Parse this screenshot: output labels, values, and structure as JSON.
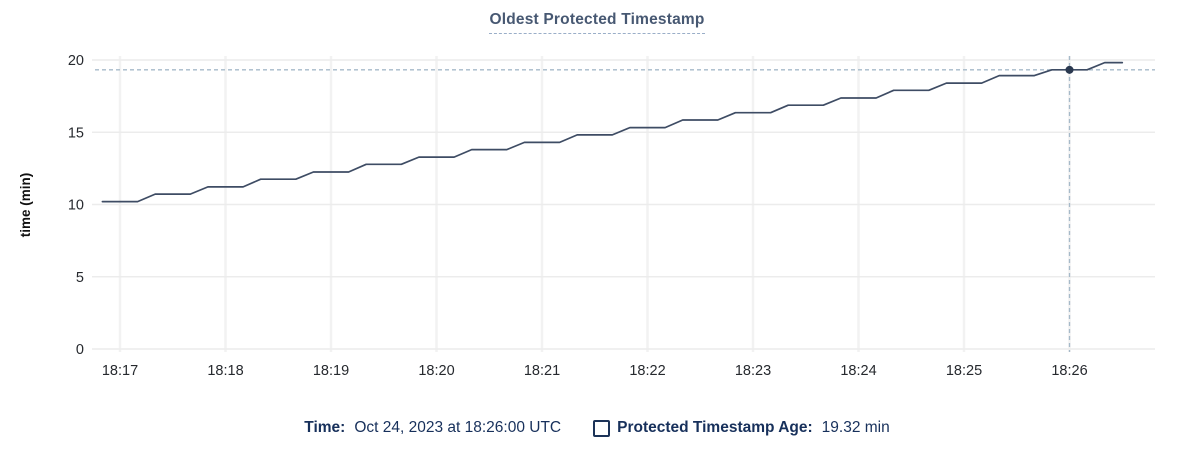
{
  "title": {
    "text": "Oldest Protected Timestamp"
  },
  "legend": {
    "time_label": "Time:",
    "time_value": "Oct 24, 2023 at 18:26:00 UTC",
    "series_checkbox_icon": "checkbox-unchecked-icon",
    "series_label": "Protected Timestamp Age:",
    "series_value": "19.32 min"
  },
  "colors": {
    "background": "#ffffff",
    "title": "#475872",
    "title_underline": "#9aaec8",
    "legend_text": "#17305b",
    "series_line": "#3e4c64",
    "hover_dot": "#2b3950",
    "crosshair": "#a6bac9",
    "grid_horizontal": "#ececec",
    "grid_vertical": "#f2f2f2",
    "tick_label": "#26292e",
    "axis_label": "#111111"
  },
  "chart_data": {
    "type": "line",
    "title": "Oldest Protected Timestamp",
    "xlabel": "",
    "ylabel": "time (min)",
    "ylim": [
      0,
      20
    ],
    "y_ticks": [
      0,
      5,
      10,
      15,
      20
    ],
    "x_ticks": [
      "18:17",
      "18:18",
      "18:19",
      "18:20",
      "18:21",
      "18:22",
      "18:23",
      "18:24",
      "18:25",
      "18:26"
    ],
    "x_range": [
      "18:16:46",
      "18:26:49"
    ],
    "grid": true,
    "legend_position": "bottom",
    "series": [
      {
        "name": "Protected Timestamp Age",
        "unit": "min",
        "points": [
          [
            "18:16:50",
            10.2
          ],
          [
            "18:17:00",
            10.2
          ],
          [
            "18:17:10",
            10.2
          ],
          [
            "18:17:20",
            10.72
          ],
          [
            "18:17:30",
            10.72
          ],
          [
            "18:17:40",
            10.72
          ],
          [
            "18:17:50",
            11.22
          ],
          [
            "18:18:00",
            11.22
          ],
          [
            "18:18:10",
            11.22
          ],
          [
            "18:18:20",
            11.75
          ],
          [
            "18:18:30",
            11.75
          ],
          [
            "18:18:40",
            11.75
          ],
          [
            "18:18:50",
            12.25
          ],
          [
            "18:19:00",
            12.25
          ],
          [
            "18:19:10",
            12.25
          ],
          [
            "18:19:20",
            12.78
          ],
          [
            "18:19:30",
            12.78
          ],
          [
            "18:19:40",
            12.78
          ],
          [
            "18:19:50",
            13.28
          ],
          [
            "18:20:00",
            13.28
          ],
          [
            "18:20:10",
            13.28
          ],
          [
            "18:20:20",
            13.8
          ],
          [
            "18:20:30",
            13.8
          ],
          [
            "18:20:40",
            13.8
          ],
          [
            "18:20:50",
            14.3
          ],
          [
            "18:21:00",
            14.3
          ],
          [
            "18:21:10",
            14.3
          ],
          [
            "18:21:20",
            14.82
          ],
          [
            "18:21:30",
            14.82
          ],
          [
            "18:21:40",
            14.82
          ],
          [
            "18:21:50",
            15.32
          ],
          [
            "18:22:00",
            15.32
          ],
          [
            "18:22:10",
            15.32
          ],
          [
            "18:22:20",
            15.85
          ],
          [
            "18:22:30",
            15.85
          ],
          [
            "18:22:40",
            15.85
          ],
          [
            "18:22:50",
            16.35
          ],
          [
            "18:23:00",
            16.35
          ],
          [
            "18:23:10",
            16.35
          ],
          [
            "18:23:20",
            16.87
          ],
          [
            "18:23:30",
            16.87
          ],
          [
            "18:23:40",
            16.87
          ],
          [
            "18:23:50",
            17.37
          ],
          [
            "18:24:00",
            17.37
          ],
          [
            "18:24:10",
            17.37
          ],
          [
            "18:24:20",
            17.9
          ],
          [
            "18:24:30",
            17.9
          ],
          [
            "18:24:40",
            17.9
          ],
          [
            "18:24:50",
            18.4
          ],
          [
            "18:25:00",
            18.4
          ],
          [
            "18:25:10",
            18.4
          ],
          [
            "18:25:20",
            18.92
          ],
          [
            "18:25:30",
            18.92
          ],
          [
            "18:25:40",
            18.92
          ],
          [
            "18:25:50",
            19.32
          ],
          [
            "18:26:00",
            19.32
          ],
          [
            "18:26:10",
            19.32
          ],
          [
            "18:26:20",
            19.82
          ],
          [
            "18:26:30",
            19.82
          ]
        ]
      }
    ],
    "hover": {
      "time": "18:26:00",
      "time_display": "Oct 24, 2023 at 18:26:00 UTC",
      "value": 19.32,
      "value_display": "19.32 min"
    }
  }
}
